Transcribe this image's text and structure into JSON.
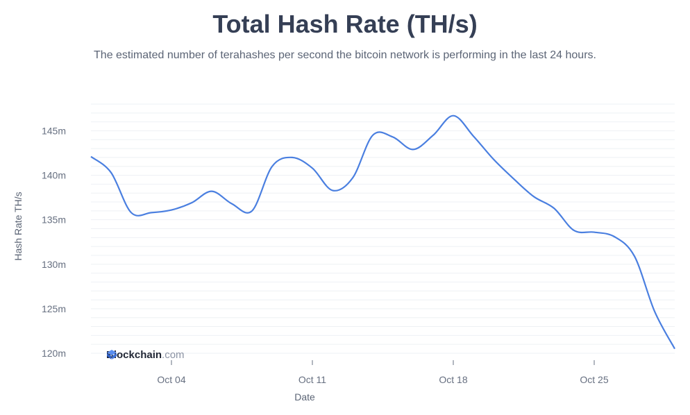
{
  "header": {
    "title": "Total Hash Rate (TH/s)",
    "subtitle": "The estimated number of terahashes per second the bitcoin network is performing in the last 24 hours."
  },
  "brand": {
    "name": "Blockchain",
    "suffix": ".com",
    "icon": "blockchain-logo-icon"
  },
  "colors": {
    "line": "#4a7fe0",
    "grid": "#eef0f4",
    "text": "#666f80",
    "title": "#353f55"
  },
  "chart_data": {
    "type": "line",
    "title": "Total Hash Rate (TH/s)",
    "xlabel": "Date",
    "ylabel": "Hash Rate TH/s",
    "x_range": [
      "2023-09-30",
      "2023-10-29"
    ],
    "y_range": [
      120000000,
      148000000
    ],
    "y_ticks": [
      120000000,
      125000000,
      130000000,
      135000000,
      140000000,
      145000000
    ],
    "y_tick_labels": [
      "120m",
      "125m",
      "130m",
      "135m",
      "140m",
      "145m"
    ],
    "x_ticks": [
      "2023-10-04",
      "2023-10-11",
      "2023-10-18",
      "2023-10-25"
    ],
    "x_tick_labels": [
      "Oct 04",
      "Oct 11",
      "Oct 18",
      "Oct 25"
    ],
    "grid": true,
    "series": [
      {
        "points": [
          [
            "2023-09-30",
            142100000
          ],
          [
            "2023-10-01",
            140300000
          ],
          [
            "2023-10-02",
            135800000
          ],
          [
            "2023-10-03",
            135800000
          ],
          [
            "2023-10-04",
            136100000
          ],
          [
            "2023-10-05",
            136900000
          ],
          [
            "2023-10-06",
            138200000
          ],
          [
            "2023-10-07",
            136800000
          ],
          [
            "2023-10-08",
            136000000
          ],
          [
            "2023-10-09",
            141000000
          ],
          [
            "2023-10-10",
            142000000
          ],
          [
            "2023-10-11",
            140800000
          ],
          [
            "2023-10-12",
            138300000
          ],
          [
            "2023-10-13",
            139700000
          ],
          [
            "2023-10-14",
            144500000
          ],
          [
            "2023-10-15",
            144300000
          ],
          [
            "2023-10-16",
            142900000
          ],
          [
            "2023-10-17",
            144500000
          ],
          [
            "2023-10-18",
            146700000
          ],
          [
            "2023-10-19",
            144400000
          ],
          [
            "2023-10-20",
            141800000
          ],
          [
            "2023-10-21",
            139600000
          ],
          [
            "2023-10-22",
            137600000
          ],
          [
            "2023-10-23",
            136300000
          ],
          [
            "2023-10-24",
            133800000
          ],
          [
            "2023-10-25",
            133600000
          ],
          [
            "2023-10-26",
            133100000
          ],
          [
            "2023-10-27",
            130900000
          ],
          [
            "2023-10-28",
            124700000
          ],
          [
            "2023-10-29",
            120500000
          ]
        ]
      }
    ]
  }
}
